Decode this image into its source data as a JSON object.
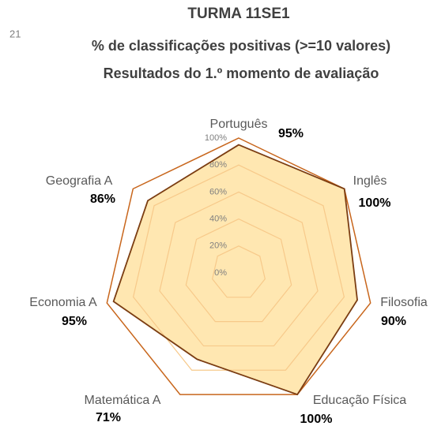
{
  "page_number": "21",
  "chart_data": {
    "type": "radar",
    "title": "TURMA 11SE1",
    "subtitle": [
      "% de classificações positivas (>=10 valores)",
      "Resultados do 1.º momento de avaliação"
    ],
    "categories": [
      "Português",
      "Inglês",
      "Filosofia",
      "Educação Física",
      "Matemática A",
      "Economia A",
      "Geografia A"
    ],
    "values": [
      95,
      100,
      90,
      100,
      71,
      95,
      86
    ],
    "value_labels": [
      "95%",
      "100%",
      "90%",
      "100%",
      "71%",
      "95%",
      "86%"
    ],
    "color": "#ffe3a3",
    "line_color": "#7b3d12",
    "grid_color": "#f7c98a",
    "outer_grid_color": "#c8661c",
    "ylim": [
      0,
      100
    ],
    "yticks": [
      {
        "value": 0,
        "label": "0%"
      },
      {
        "value": 20,
        "label": "20%"
      },
      {
        "value": 40,
        "label": "40%"
      },
      {
        "value": 60,
        "label": "60%"
      },
      {
        "value": 80,
        "label": "80%"
      },
      {
        "value": 100,
        "label": "100%"
      }
    ]
  }
}
